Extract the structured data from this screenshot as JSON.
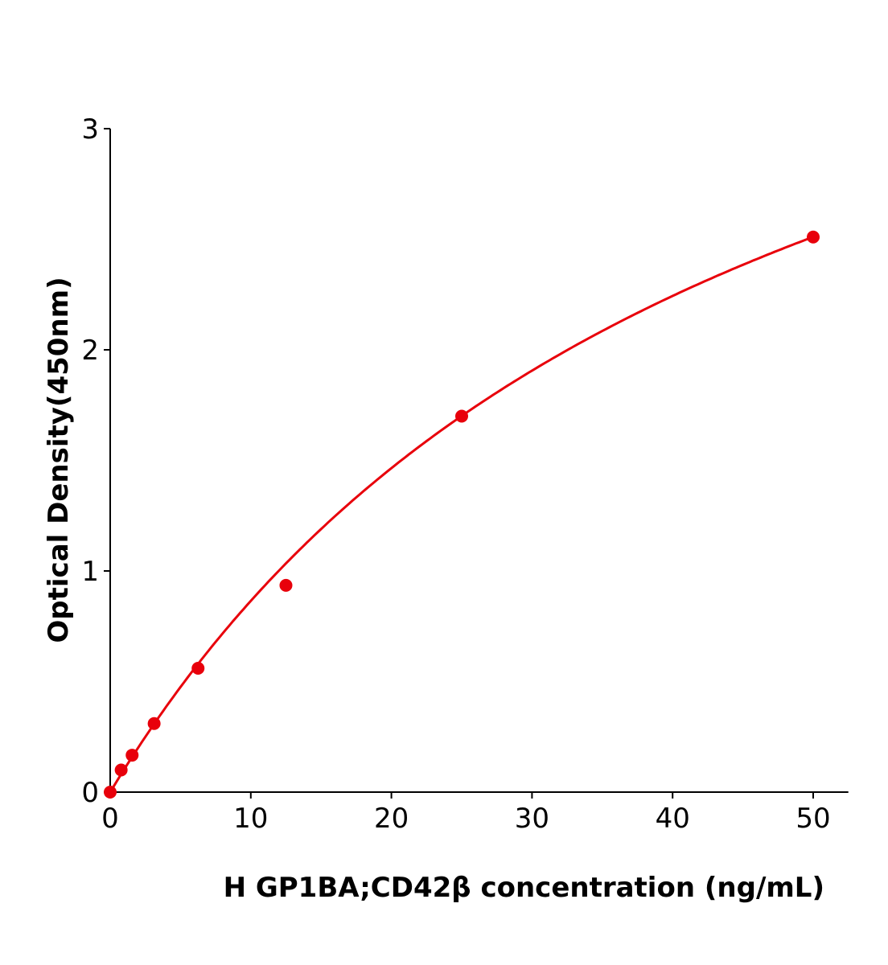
{
  "chart_data": {
    "type": "scatter",
    "title": "",
    "xlabel": "H  GP1BA;CD42β concentration (ng/mL)",
    "ylabel": "Optical Density(450nm)",
    "xlim": [
      0,
      52.5
    ],
    "ylim": [
      0,
      3
    ],
    "xticks": [
      0,
      10,
      20,
      30,
      40,
      50
    ],
    "yticks": [
      0,
      1,
      2,
      3
    ],
    "grid": false,
    "series": [
      {
        "x": [
          0,
          0.78,
          1.56,
          3.125,
          6.25,
          12.5,
          25,
          50
        ],
        "y": [
          0.0,
          0.1,
          0.167,
          0.31,
          0.56,
          0.935,
          1.7,
          2.51
        ],
        "color": "#e8000b",
        "fit_line": true
      }
    ]
  }
}
